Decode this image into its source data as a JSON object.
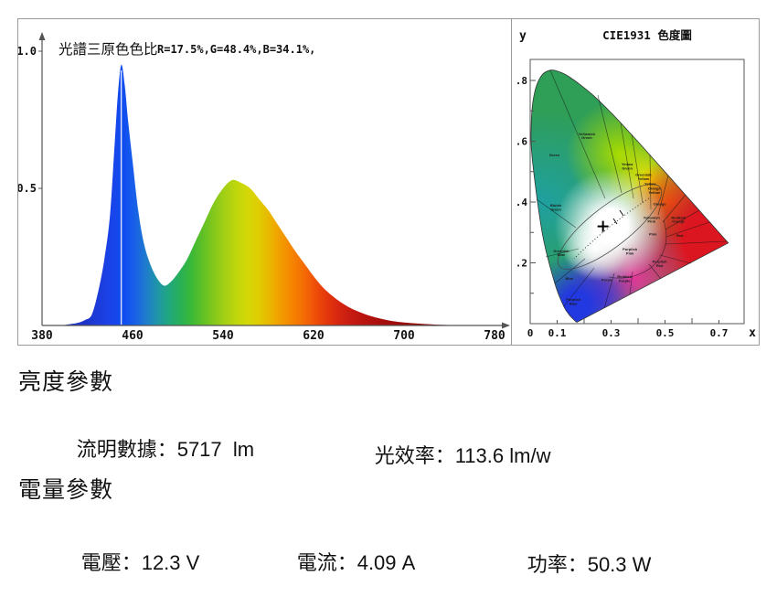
{
  "parameters": {
    "brightness": {
      "heading": "亮度參數",
      "items": [
        {
          "label": "流明數據：",
          "value": "5717  lm"
        },
        {
          "label": "光效率：",
          "value": "113.6 lm/w"
        }
      ]
    },
    "power": {
      "heading": "電量參數",
      "items": [
        {
          "label": "電壓：",
          "value": "12.3 V"
        },
        {
          "label": "電流：",
          "value": "4.09 A"
        },
        {
          "label": "功率：",
          "value": "50.3 W"
        }
      ]
    }
  },
  "chart_data": [
    {
      "type": "area",
      "title": "光譜三原色色比",
      "annotation": "R=17.5%,G=48.4%,B=34.1%,",
      "xlim": [
        380,
        780
      ],
      "ylim": [
        0,
        1.0
      ],
      "x_ticks": [
        "380",
        "460",
        "540",
        "620",
        "700",
        "780"
      ],
      "y_ticks": [
        {
          "label": "1.0",
          "value": 1.0
        },
        {
          "label": "0.5",
          "value": 0.5
        }
      ],
      "peak_marker_nm": 450,
      "points": [
        [
          380,
          0
        ],
        [
          395,
          0
        ],
        [
          405,
          0.005
        ],
        [
          412,
          0.01
        ],
        [
          418,
          0.02
        ],
        [
          424,
          0.04
        ],
        [
          430,
          0.13
        ],
        [
          435,
          0.24
        ],
        [
          440,
          0.4
        ],
        [
          444,
          0.65
        ],
        [
          447,
          0.84
        ],
        [
          450,
          0.95
        ],
        [
          453,
          0.88
        ],
        [
          456,
          0.75
        ],
        [
          460,
          0.6
        ],
        [
          465,
          0.42
        ],
        [
          470,
          0.3
        ],
        [
          476,
          0.22
        ],
        [
          482,
          0.17
        ],
        [
          488,
          0.145
        ],
        [
          494,
          0.16
        ],
        [
          500,
          0.19
        ],
        [
          508,
          0.24
        ],
        [
          516,
          0.31
        ],
        [
          524,
          0.38
        ],
        [
          532,
          0.45
        ],
        [
          540,
          0.5
        ],
        [
          548,
          0.53
        ],
        [
          556,
          0.52
        ],
        [
          564,
          0.5
        ],
        [
          572,
          0.46
        ],
        [
          580,
          0.42
        ],
        [
          588,
          0.37
        ],
        [
          596,
          0.32
        ],
        [
          604,
          0.27
        ],
        [
          612,
          0.225
        ],
        [
          620,
          0.18
        ],
        [
          628,
          0.14
        ],
        [
          636,
          0.11
        ],
        [
          644,
          0.085
        ],
        [
          652,
          0.065
        ],
        [
          660,
          0.05
        ],
        [
          670,
          0.035
        ],
        [
          680,
          0.024
        ],
        [
          690,
          0.016
        ],
        [
          700,
          0.011
        ],
        [
          712,
          0.007
        ],
        [
          724,
          0.004
        ],
        [
          736,
          0.002
        ],
        [
          750,
          0.001
        ],
        [
          765,
          0.0005
        ],
        [
          780,
          0
        ]
      ],
      "gradient_stops": [
        [
          380,
          "#1e2db0"
        ],
        [
          420,
          "#1d35cc"
        ],
        [
          440,
          "#1a43e8"
        ],
        [
          452,
          "#0f4cf0"
        ],
        [
          462,
          "#1860e8"
        ],
        [
          472,
          "#1f7ccc"
        ],
        [
          482,
          "#1f96a8"
        ],
        [
          492,
          "#21a77e"
        ],
        [
          502,
          "#28b058"
        ],
        [
          512,
          "#3bb838"
        ],
        [
          522,
          "#5fc026"
        ],
        [
          532,
          "#85c81c"
        ],
        [
          542,
          "#a5d014"
        ],
        [
          552,
          "#c0d60c"
        ],
        [
          562,
          "#d4d806"
        ],
        [
          572,
          "#e0cc02"
        ],
        [
          582,
          "#eab400"
        ],
        [
          592,
          "#f29a00"
        ],
        [
          602,
          "#f58200"
        ],
        [
          612,
          "#f46a04"
        ],
        [
          622,
          "#ee4e08"
        ],
        [
          632,
          "#e4360c"
        ],
        [
          642,
          "#d62610"
        ],
        [
          652,
          "#c81c12"
        ],
        [
          665,
          "#b81410"
        ],
        [
          680,
          "#a80e0c"
        ],
        [
          700,
          "#980a08"
        ],
        [
          730,
          "#8a0806"
        ],
        [
          780,
          "#7c0604"
        ]
      ]
    },
    {
      "type": "diagram",
      "title": "CIE1931 色度圖",
      "xlabel": "x",
      "ylabel": "y",
      "x_tick_labels": [
        {
          "label": "0",
          "x": 0
        },
        {
          "label": "0.1",
          "x": 0.1
        },
        {
          "label": "0.3",
          "x": 0.3
        },
        {
          "label": "0.5",
          "x": 0.5
        },
        {
          "label": "0.7",
          "x": 0.7
        }
      ],
      "y_tick_labels": [
        {
          "label": ".8",
          "y": 0.8
        },
        {
          "label": ".6",
          "y": 0.6
        },
        {
          "label": ".4",
          "y": 0.4
        },
        {
          "label": ".2",
          "y": 0.2
        }
      ],
      "xlim": [
        0,
        0.8
      ],
      "ylim": [
        0,
        0.87
      ],
      "white_point": {
        "x": 0.27,
        "y": 0.32
      },
      "locus": [
        [
          0.1741,
          0.005
        ],
        [
          0.174,
          0.0049
        ],
        [
          0.1733,
          0.0048
        ],
        [
          0.1726,
          0.0048
        ],
        [
          0.1714,
          0.0051
        ],
        [
          0.1689,
          0.0069
        ],
        [
          0.1644,
          0.0109
        ],
        [
          0.1566,
          0.0177
        ],
        [
          0.144,
          0.0297
        ],
        [
          0.1241,
          0.0578
        ],
        [
          0.0913,
          0.1327
        ],
        [
          0.0454,
          0.295
        ],
        [
          0.0082,
          0.5384
        ],
        [
          0.0039,
          0.6548
        ],
        [
          0.0139,
          0.7502
        ],
        [
          0.0389,
          0.812
        ],
        [
          0.0743,
          0.8338
        ],
        [
          0.1142,
          0.8262
        ],
        [
          0.1547,
          0.8059
        ],
        [
          0.2296,
          0.7543
        ],
        [
          0.3016,
          0.6923
        ],
        [
          0.3731,
          0.6245
        ],
        [
          0.4441,
          0.5547
        ],
        [
          0.5125,
          0.4866
        ],
        [
          0.5752,
          0.4242
        ],
        [
          0.627,
          0.3725
        ],
        [
          0.6658,
          0.334
        ],
        [
          0.6915,
          0.3083
        ],
        [
          0.7079,
          0.292
        ],
        [
          0.719,
          0.2809
        ],
        [
          0.726,
          0.274
        ],
        [
          0.7347,
          0.2653
        ]
      ],
      "regions": [
        {
          "label": "Green",
          "x": 0.09,
          "y": 0.55
        },
        {
          "label": "Yellowish Green",
          "x": 0.21,
          "y": 0.62
        },
        {
          "label": "Yellow Green",
          "x": 0.36,
          "y": 0.52
        },
        {
          "label": "Greenish Yellow",
          "x": 0.42,
          "y": 0.485
        },
        {
          "label": "Yellow",
          "x": 0.445,
          "y": 0.455
        },
        {
          "label": "Orange Yellow",
          "x": 0.46,
          "y": 0.44
        },
        {
          "label": "Orange",
          "x": 0.48,
          "y": 0.39
        },
        {
          "label": "Yellowish Pink",
          "x": 0.45,
          "y": 0.345
        },
        {
          "label": "Reddish Orange",
          "x": 0.55,
          "y": 0.345
        },
        {
          "label": "Pink",
          "x": 0.455,
          "y": 0.29
        },
        {
          "label": "Red",
          "x": 0.555,
          "y": 0.285
        },
        {
          "label": "Purplish Pink",
          "x": 0.37,
          "y": 0.24
        },
        {
          "label": "Purplish Red",
          "x": 0.48,
          "y": 0.2
        },
        {
          "label": "Reddish Purple",
          "x": 0.35,
          "y": 0.15
        },
        {
          "label": "Purple",
          "x": 0.285,
          "y": 0.14
        },
        {
          "label": "Blue",
          "x": 0.145,
          "y": 0.145
        },
        {
          "label": "Greenish Blue",
          "x": 0.115,
          "y": 0.235
        },
        {
          "label": "Bluish Green",
          "x": 0.095,
          "y": 0.385
        },
        {
          "label": "Purplish Blue",
          "x": 0.16,
          "y": 0.075
        }
      ]
    }
  ]
}
